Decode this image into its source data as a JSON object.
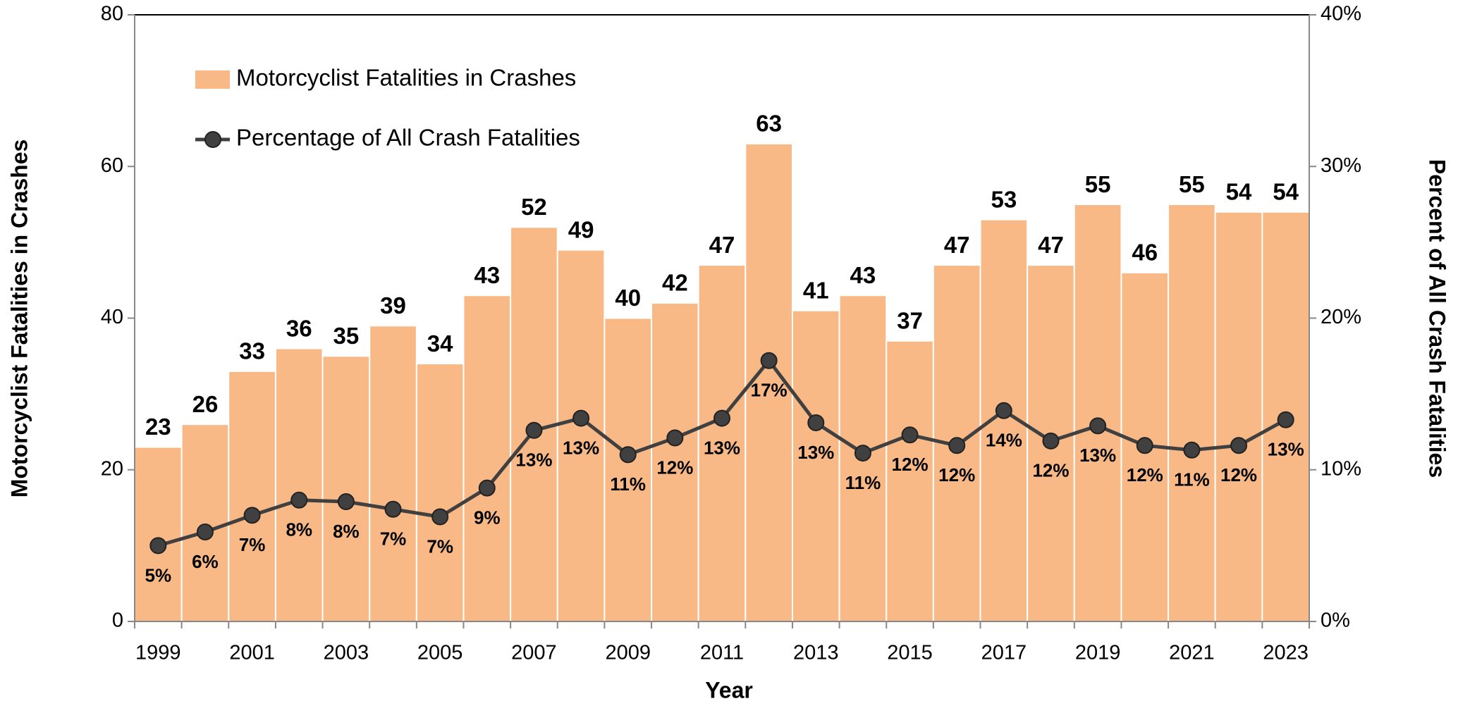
{
  "chart_data": {
    "type": "bar",
    "x_label": "Year",
    "y_label": "Motorcyclist Fatalities in Crashes",
    "y2_label": "Percent of All Crash Fatalities",
    "categories": [
      "1999",
      null,
      "2001",
      null,
      "2003",
      null,
      "2005",
      null,
      "2007",
      null,
      "2009",
      null,
      "2011",
      null,
      "2013",
      null,
      "2015",
      null,
      "2017",
      null,
      "2019",
      null,
      "2021",
      null,
      "2023"
    ],
    "series": [
      {
        "name": "Motorcyclist Fatalities in Crashes",
        "type": "bar",
        "color": "#f8b987",
        "values": [
          23,
          26,
          33,
          36,
          35,
          39,
          34,
          43,
          52,
          49,
          40,
          42,
          47,
          63,
          41,
          43,
          37,
          47,
          53,
          47,
          55,
          46,
          55,
          54,
          54
        ]
      },
      {
        "name": "Percentage of All Crash Fatalities",
        "type": "line",
        "axis": "y2",
        "color": "#404040",
        "values": [
          5.0,
          5.9,
          7.0,
          8.0,
          7.9,
          7.4,
          6.9,
          8.8,
          12.6,
          13.4,
          11.0,
          12.1,
          13.4,
          17.2,
          13.1,
          11.1,
          12.3,
          11.6,
          13.9,
          11.9,
          12.9,
          11.6,
          11.3,
          11.6,
          13.3
        ],
        "value_labels": [
          "5%",
          "6%",
          "7%",
          "8%",
          "8%",
          "7%",
          "7%",
          "9%",
          "13%",
          "13%",
          "11%",
          "12%",
          "13%",
          "17%",
          "13%",
          "11%",
          "12%",
          "12%",
          "14%",
          "12%",
          "13%",
          "12%",
          "11%",
          "12%",
          "13%"
        ]
      }
    ],
    "ylim": [
      0,
      80
    ],
    "yticks": [
      0,
      20,
      40,
      60,
      80
    ],
    "y2lim": [
      0,
      40
    ],
    "y2ticks": [
      {
        "value": 0,
        "label": "0%"
      },
      {
        "value": 10,
        "label": "10%"
      },
      {
        "value": 20,
        "label": "20%"
      },
      {
        "value": 30,
        "label": "30%"
      },
      {
        "value": 40,
        "label": "40%"
      }
    ],
    "legend": "upper left",
    "grid": false
  }
}
